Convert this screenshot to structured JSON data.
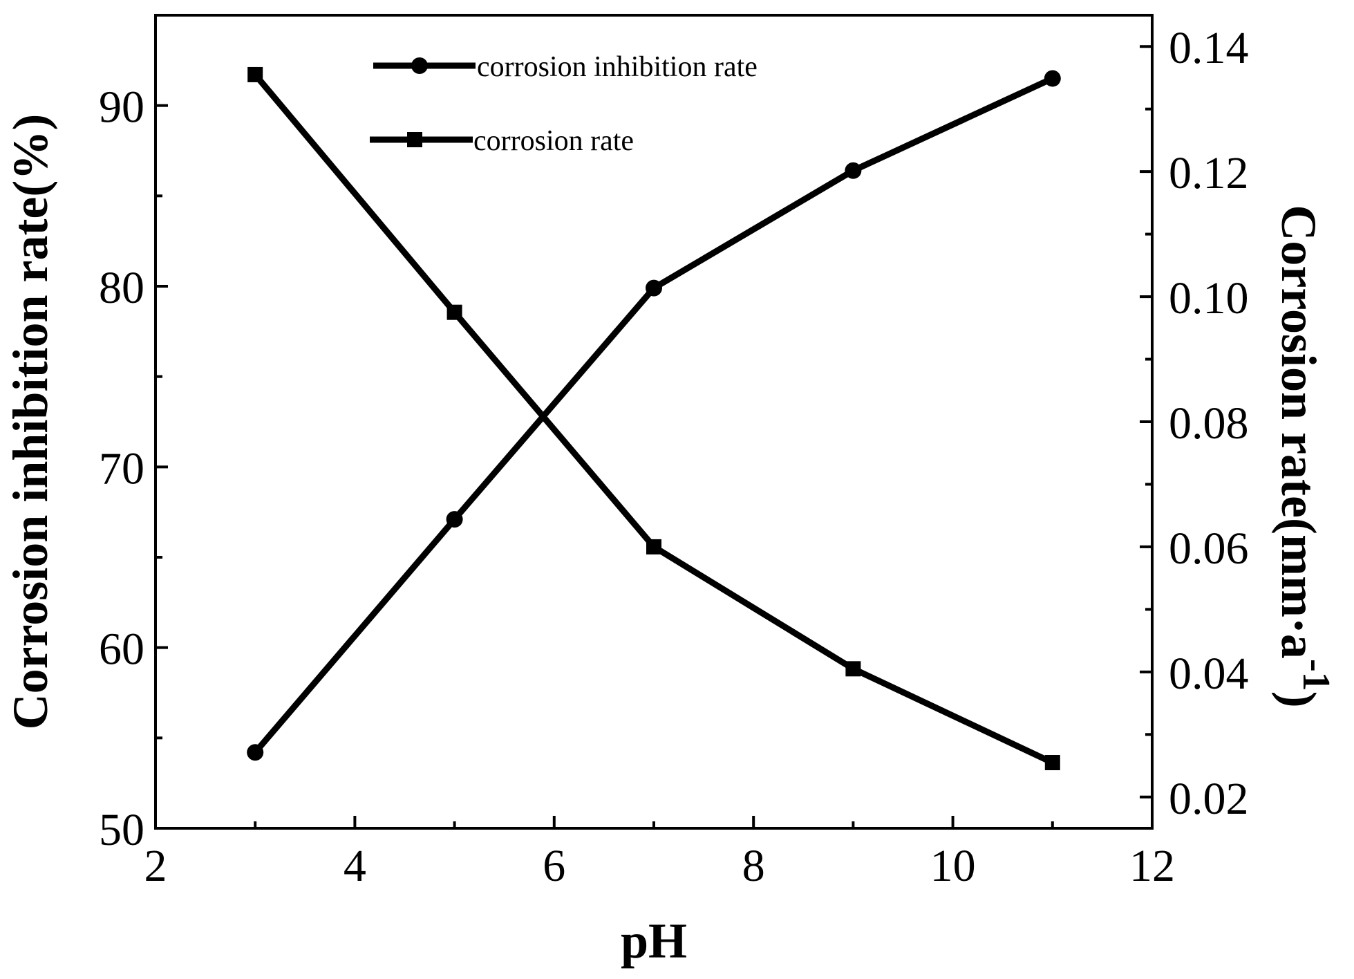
{
  "chart_data": {
    "type": "line",
    "title": "",
    "xlabel": "pH",
    "ylabel_left": "Corrosion inhibition rate(%)",
    "ylabel_right": "Corrosion rate(mm·a-1)",
    "ylabel_right_main": "Corrosion rate(mm·a",
    "ylabel_right_superscript": "-1",
    "ylabel_right_close": ")",
    "x": [
      3,
      5,
      7,
      9,
      11
    ],
    "xlim": [
      2,
      12
    ],
    "ylim_left": [
      50,
      95
    ],
    "ylim_right": [
      0.015,
      0.145
    ],
    "x_ticks": [
      "2",
      "4",
      "6",
      "8",
      "10",
      "12"
    ],
    "y_left_ticks": [
      "50",
      "60",
      "70",
      "80",
      "90"
    ],
    "y_right_ticks": [
      "0.02",
      "0.04",
      "0.06",
      "0.08",
      "0.10",
      "0.12",
      "0.14"
    ],
    "grid": false,
    "legend_position": "top-center",
    "series": [
      {
        "name": "corrosion inhibition rate",
        "axis": "left",
        "marker": "circle",
        "values": [
          54.2,
          67.1,
          79.9,
          86.4,
          91.5
        ]
      },
      {
        "name": "corrosion rate",
        "axis": "right",
        "marker": "square",
        "values": [
          0.1355,
          0.0975,
          0.06,
          0.0405,
          0.0255
        ]
      }
    ]
  },
  "colors": {
    "line": "#000000",
    "background": "#ffffff"
  }
}
